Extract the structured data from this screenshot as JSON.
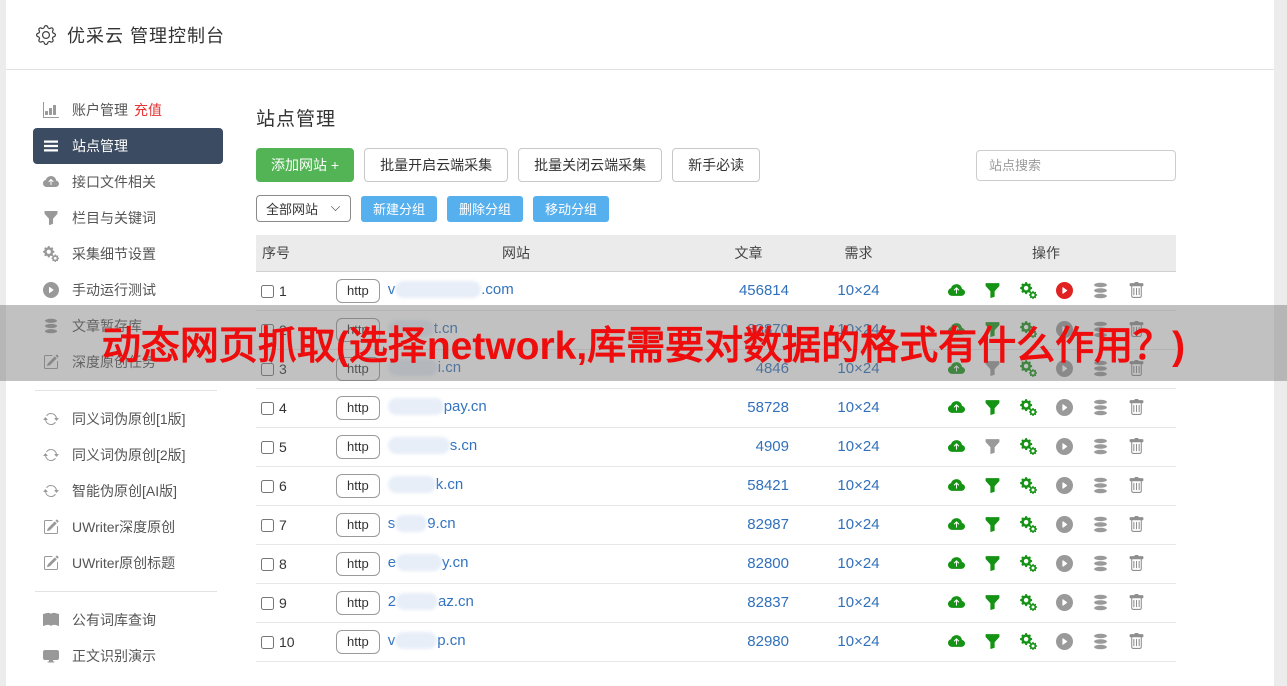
{
  "header": {
    "title": "优采云 管理控制台",
    "icon": "gear-icon"
  },
  "sidebar": {
    "groups": [
      {
        "items": [
          {
            "icon": "bar-chart-icon",
            "label": "账户管理",
            "badge": "充值",
            "active": false
          },
          {
            "icon": "list-icon",
            "label": "站点管理",
            "active": true
          },
          {
            "icon": "cloud-upload-icon",
            "label": "接口文件相关",
            "active": false
          },
          {
            "icon": "filter-icon",
            "label": "栏目与关键词",
            "active": false
          },
          {
            "icon": "gears-icon",
            "label": "采集细节设置",
            "active": false
          },
          {
            "icon": "play-icon",
            "label": "手动运行测试",
            "active": false
          },
          {
            "icon": "database-icon",
            "label": "文章暂存库",
            "active": false
          },
          {
            "icon": "pencil-icon",
            "label": "深度原创任务",
            "active": false
          }
        ]
      },
      {
        "items": [
          {
            "icon": "refresh-icon",
            "label": "同义词伪原创[1版]",
            "active": false
          },
          {
            "icon": "refresh-icon",
            "label": "同义词伪原创[2版]",
            "active": false
          },
          {
            "icon": "refresh-icon",
            "label": "智能伪原创[AI版]",
            "active": false
          },
          {
            "icon": "pencil-icon",
            "label": "UWriter深度原创",
            "active": false
          },
          {
            "icon": "pencil-icon",
            "label": "UWriter原创标题",
            "active": false
          }
        ]
      },
      {
        "items": [
          {
            "icon": "book-icon",
            "label": "公有词库查询",
            "active": false
          },
          {
            "icon": "monitor-icon",
            "label": "正文识别演示",
            "active": false
          }
        ]
      }
    ]
  },
  "main": {
    "page_title": "站点管理",
    "toolbar": {
      "add_site": "添加网站 +",
      "batch_open": "批量开启云端采集",
      "batch_close": "批量关闭云端采集",
      "newbie_guide": "新手必读",
      "search_placeholder": "站点搜索"
    },
    "group_bar": {
      "group_select": "全部网站",
      "new_group": "新建分组",
      "delete_group": "删除分组",
      "move_group": "移动分组"
    },
    "table": {
      "headers": [
        "序号",
        "网站",
        "文章",
        "需求",
        "操作"
      ],
      "action_icons": [
        "cloud-upload-icon",
        "filter-icon",
        "gears-icon",
        "play-icon",
        "database-icon",
        "trash-icon"
      ],
      "rows": [
        {
          "index": "1",
          "protocol": "http",
          "domain_prefix": "v",
          "domain_suffix": ".com",
          "mask_width": 86,
          "articles": "456814",
          "demand": "10×24",
          "filter_active": true,
          "run_active": true
        },
        {
          "index": "2",
          "protocol": "http",
          "domain_prefix": "",
          "domain_suffix": "t.cn",
          "mask_width": 46,
          "articles": "83870",
          "demand": "10×24",
          "filter_active": true,
          "run_active": false
        },
        {
          "index": "3",
          "protocol": "http",
          "domain_prefix": "",
          "domain_suffix": "i.cn",
          "mask_width": 50,
          "articles": "4846",
          "demand": "10×24",
          "filter_active": false,
          "run_active": false
        },
        {
          "index": "4",
          "protocol": "http",
          "domain_prefix": "",
          "domain_suffix": "pay.cn",
          "mask_width": 56,
          "articles": "58728",
          "demand": "10×24",
          "filter_active": true,
          "run_active": false
        },
        {
          "index": "5",
          "protocol": "http",
          "domain_prefix": "",
          "domain_suffix": "s.cn",
          "mask_width": 62,
          "articles": "4909",
          "demand": "10×24",
          "filter_active": false,
          "run_active": false
        },
        {
          "index": "6",
          "protocol": "http",
          "domain_prefix": "",
          "domain_suffix": "k.cn",
          "mask_width": 48,
          "articles": "58421",
          "demand": "10×24",
          "filter_active": true,
          "run_active": false
        },
        {
          "index": "7",
          "protocol": "http",
          "domain_prefix": "s",
          "domain_suffix": "9.cn",
          "mask_width": 32,
          "articles": "82987",
          "demand": "10×24",
          "filter_active": true,
          "run_active": false
        },
        {
          "index": "8",
          "protocol": "http",
          "domain_prefix": "e",
          "domain_suffix": "y.cn",
          "mask_width": 46,
          "articles": "82800",
          "demand": "10×24",
          "filter_active": true,
          "run_active": false
        },
        {
          "index": "9",
          "protocol": "http",
          "domain_prefix": "2",
          "domain_suffix": "az.cn",
          "mask_width": 42,
          "articles": "82837",
          "demand": "10×24",
          "filter_active": true,
          "run_active": false
        },
        {
          "index": "10",
          "protocol": "http",
          "domain_prefix": "v",
          "domain_suffix": "p.cn",
          "mask_width": 42,
          "articles": "82980",
          "demand": "10×24",
          "filter_active": true,
          "run_active": false
        }
      ]
    }
  },
  "overlay": {
    "text": "动态网页抓取(选择network,库需要对数据的格式有什么作用？)"
  },
  "colors": {
    "icon_green": "#149314",
    "icon_gray": "#9a9a9a",
    "icon_red": "#e02222",
    "button_green": "#52b455",
    "button_blue": "#57b0ee",
    "link_blue": "#3170bb",
    "active_nav_bg": "#3b4b61",
    "badge_red": "#e53333",
    "banner_red": "#ee0c0c"
  }
}
